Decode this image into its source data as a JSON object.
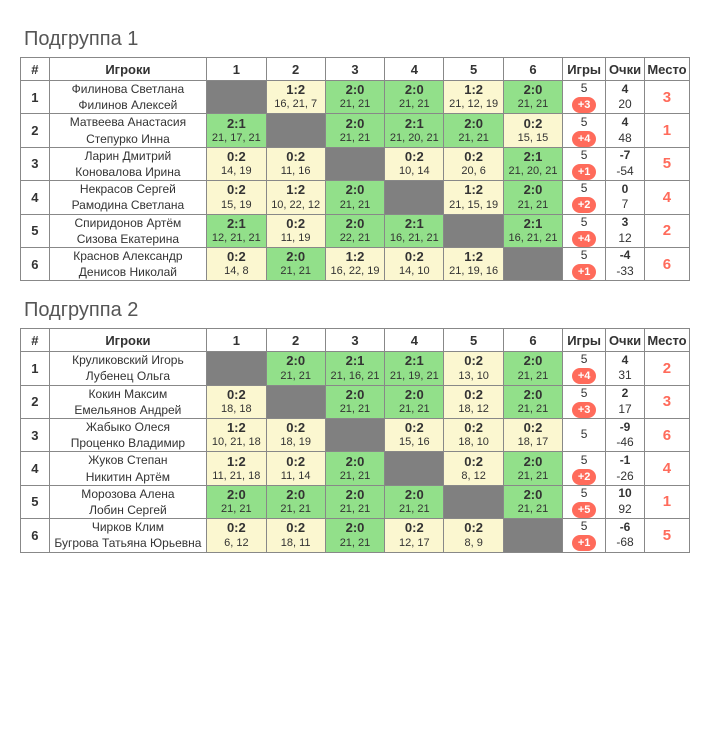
{
  "headers": {
    "num": "#",
    "players": "Игроки",
    "games": "Игры",
    "points": "Очки",
    "place": "Место"
  },
  "colors": {
    "win_bg": "#92e08a",
    "loss_bg": "#fbf7d0",
    "self_bg": "#808080",
    "badge_bg": "#ff6b5b",
    "place_color": "#ff6b5b",
    "border": "#888888"
  },
  "groups": [
    {
      "title": "Подгруппа 1",
      "columns": [
        "1",
        "2",
        "3",
        "4",
        "5",
        "6"
      ],
      "rows": [
        {
          "num": "1",
          "players": [
            "Филинова Светлана",
            "Филинов Алексей"
          ],
          "cells": [
            {
              "self": true
            },
            {
              "result": "loss",
              "score": "1:2",
              "detail": "16, 21, 7"
            },
            {
              "result": "win",
              "score": "2:0",
              "detail": "21, 21"
            },
            {
              "result": "win",
              "score": "2:0",
              "detail": "21, 21"
            },
            {
              "result": "loss",
              "score": "1:2",
              "detail": "21, 12, 19"
            },
            {
              "result": "win",
              "score": "2:0",
              "detail": "21, 21"
            }
          ],
          "games": "5",
          "badge": "+3",
          "pts_top": "4",
          "pts_bot": "20",
          "place": "3"
        },
        {
          "num": "2",
          "players": [
            "Матвеева Анастасия",
            "Степурко Инна"
          ],
          "cells": [
            {
              "result": "win",
              "score": "2:1",
              "detail": "21, 17, 21"
            },
            {
              "self": true
            },
            {
              "result": "win",
              "score": "2:0",
              "detail": "21, 21"
            },
            {
              "result": "win",
              "score": "2:1",
              "detail": "21, 20, 21"
            },
            {
              "result": "win",
              "score": "2:0",
              "detail": "21, 21"
            },
            {
              "result": "loss",
              "score": "0:2",
              "detail": "15, 15"
            }
          ],
          "games": "5",
          "badge": "+4",
          "pts_top": "4",
          "pts_bot": "48",
          "place": "1"
        },
        {
          "num": "3",
          "players": [
            "Ларин Дмитрий",
            "Коновалова Ирина"
          ],
          "cells": [
            {
              "result": "loss",
              "score": "0:2",
              "detail": "14, 19"
            },
            {
              "result": "loss",
              "score": "0:2",
              "detail": "11, 16"
            },
            {
              "self": true
            },
            {
              "result": "loss",
              "score": "0:2",
              "detail": "10, 14"
            },
            {
              "result": "loss",
              "score": "0:2",
              "detail": "20, 6"
            },
            {
              "result": "win",
              "score": "2:1",
              "detail": "21, 20, 21"
            }
          ],
          "games": "5",
          "badge": "+1",
          "pts_top": "-7",
          "pts_bot": "-54",
          "place": "5"
        },
        {
          "num": "4",
          "players": [
            "Некрасов Сергей",
            "Рамодина Светлана"
          ],
          "cells": [
            {
              "result": "loss",
              "score": "0:2",
              "detail": "15, 19"
            },
            {
              "result": "loss",
              "score": "1:2",
              "detail": "10, 22, 12"
            },
            {
              "result": "win",
              "score": "2:0",
              "detail": "21, 21"
            },
            {
              "self": true
            },
            {
              "result": "loss",
              "score": "1:2",
              "detail": "21, 15, 19"
            },
            {
              "result": "win",
              "score": "2:0",
              "detail": "21, 21"
            }
          ],
          "games": "5",
          "badge": "+2",
          "pts_top": "0",
          "pts_bot": "7",
          "place": "4"
        },
        {
          "num": "5",
          "players": [
            "Спиридонов Артём",
            "Сизова Екатерина"
          ],
          "cells": [
            {
              "result": "win",
              "score": "2:1",
              "detail": "12, 21, 21"
            },
            {
              "result": "loss",
              "score": "0:2",
              "detail": "11, 19"
            },
            {
              "result": "win",
              "score": "2:0",
              "detail": "22, 21"
            },
            {
              "result": "win",
              "score": "2:1",
              "detail": "16, 21, 21"
            },
            {
              "self": true
            },
            {
              "result": "win",
              "score": "2:1",
              "detail": "16, 21, 21"
            }
          ],
          "games": "5",
          "badge": "+4",
          "pts_top": "3",
          "pts_bot": "12",
          "place": "2"
        },
        {
          "num": "6",
          "players": [
            "Краснов Александр",
            "Денисов Николай"
          ],
          "cells": [
            {
              "result": "loss",
              "score": "0:2",
              "detail": "14, 8"
            },
            {
              "result": "win",
              "score": "2:0",
              "detail": "21, 21"
            },
            {
              "result": "loss",
              "score": "1:2",
              "detail": "16, 22, 19"
            },
            {
              "result": "loss",
              "score": "0:2",
              "detail": "14, 10"
            },
            {
              "result": "loss",
              "score": "1:2",
              "detail": "21, 19, 16"
            },
            {
              "self": true
            }
          ],
          "games": "5",
          "badge": "+1",
          "pts_top": "-4",
          "pts_bot": "-33",
          "place": "6"
        }
      ]
    },
    {
      "title": "Подгруппа 2",
      "columns": [
        "1",
        "2",
        "3",
        "4",
        "5",
        "6"
      ],
      "rows": [
        {
          "num": "1",
          "players": [
            "Круликовский Игорь",
            "Лубенец Ольга"
          ],
          "cells": [
            {
              "self": true
            },
            {
              "result": "win",
              "score": "2:0",
              "detail": "21, 21"
            },
            {
              "result": "win",
              "score": "2:1",
              "detail": "21, 16, 21"
            },
            {
              "result": "win",
              "score": "2:1",
              "detail": "21, 19, 21"
            },
            {
              "result": "loss",
              "score": "0:2",
              "detail": "13, 10"
            },
            {
              "result": "win",
              "score": "2:0",
              "detail": "21, 21"
            }
          ],
          "games": "5",
          "badge": "+4",
          "pts_top": "4",
          "pts_bot": "31",
          "place": "2"
        },
        {
          "num": "2",
          "players": [
            "Кокин Максим",
            "Емельянов Андрей"
          ],
          "cells": [
            {
              "result": "loss",
              "score": "0:2",
              "detail": "18, 18"
            },
            {
              "self": true
            },
            {
              "result": "win",
              "score": "2:0",
              "detail": "21, 21"
            },
            {
              "result": "win",
              "score": "2:0",
              "detail": "21, 21"
            },
            {
              "result": "loss",
              "score": "0:2",
              "detail": "18, 12"
            },
            {
              "result": "win",
              "score": "2:0",
              "detail": "21, 21"
            }
          ],
          "games": "5",
          "badge": "+3",
          "pts_top": "2",
          "pts_bot": "17",
          "place": "3"
        },
        {
          "num": "3",
          "players": [
            "Жабыко Олеся",
            "Проценко Владимир"
          ],
          "cells": [
            {
              "result": "loss",
              "score": "1:2",
              "detail": "10, 21, 18"
            },
            {
              "result": "loss",
              "score": "0:2",
              "detail": "18, 19"
            },
            {
              "self": true
            },
            {
              "result": "loss",
              "score": "0:2",
              "detail": "15, 16"
            },
            {
              "result": "loss",
              "score": "0:2",
              "detail": "18, 10"
            },
            {
              "result": "loss",
              "score": "0:2",
              "detail": "18, 17"
            }
          ],
          "games": "5",
          "badge": "",
          "pts_top": "-9",
          "pts_bot": "-46",
          "place": "6"
        },
        {
          "num": "4",
          "players": [
            "Жуков Степан",
            "Никитин Артём"
          ],
          "cells": [
            {
              "result": "loss",
              "score": "1:2",
              "detail": "11, 21, 18"
            },
            {
              "result": "loss",
              "score": "0:2",
              "detail": "11, 14"
            },
            {
              "result": "win",
              "score": "2:0",
              "detail": "21, 21"
            },
            {
              "self": true
            },
            {
              "result": "loss",
              "score": "0:2",
              "detail": "8, 12"
            },
            {
              "result": "win",
              "score": "2:0",
              "detail": "21, 21"
            }
          ],
          "games": "5",
          "badge": "+2",
          "pts_top": "-1",
          "pts_bot": "-26",
          "place": "4"
        },
        {
          "num": "5",
          "players": [
            "Морозова Алена",
            "Лобин Сергей"
          ],
          "cells": [
            {
              "result": "win",
              "score": "2:0",
              "detail": "21, 21"
            },
            {
              "result": "win",
              "score": "2:0",
              "detail": "21, 21"
            },
            {
              "result": "win",
              "score": "2:0",
              "detail": "21, 21"
            },
            {
              "result": "win",
              "score": "2:0",
              "detail": "21, 21"
            },
            {
              "self": true
            },
            {
              "result": "win",
              "score": "2:0",
              "detail": "21, 21"
            }
          ],
          "games": "5",
          "badge": "+5",
          "pts_top": "10",
          "pts_bot": "92",
          "place": "1"
        },
        {
          "num": "6",
          "players": [
            "Чирков Клим",
            "Бугрова Татьяна Юрьевна"
          ],
          "cells": [
            {
              "result": "loss",
              "score": "0:2",
              "detail": "6, 12"
            },
            {
              "result": "loss",
              "score": "0:2",
              "detail": "18, 11"
            },
            {
              "result": "win",
              "score": "2:0",
              "detail": "21, 21"
            },
            {
              "result": "loss",
              "score": "0:2",
              "detail": "12, 17"
            },
            {
              "result": "loss",
              "score": "0:2",
              "detail": "8, 9"
            },
            {
              "self": true
            }
          ],
          "games": "5",
          "badge": "+1",
          "pts_top": "-6",
          "pts_bot": "-68",
          "place": "5"
        }
      ]
    }
  ]
}
